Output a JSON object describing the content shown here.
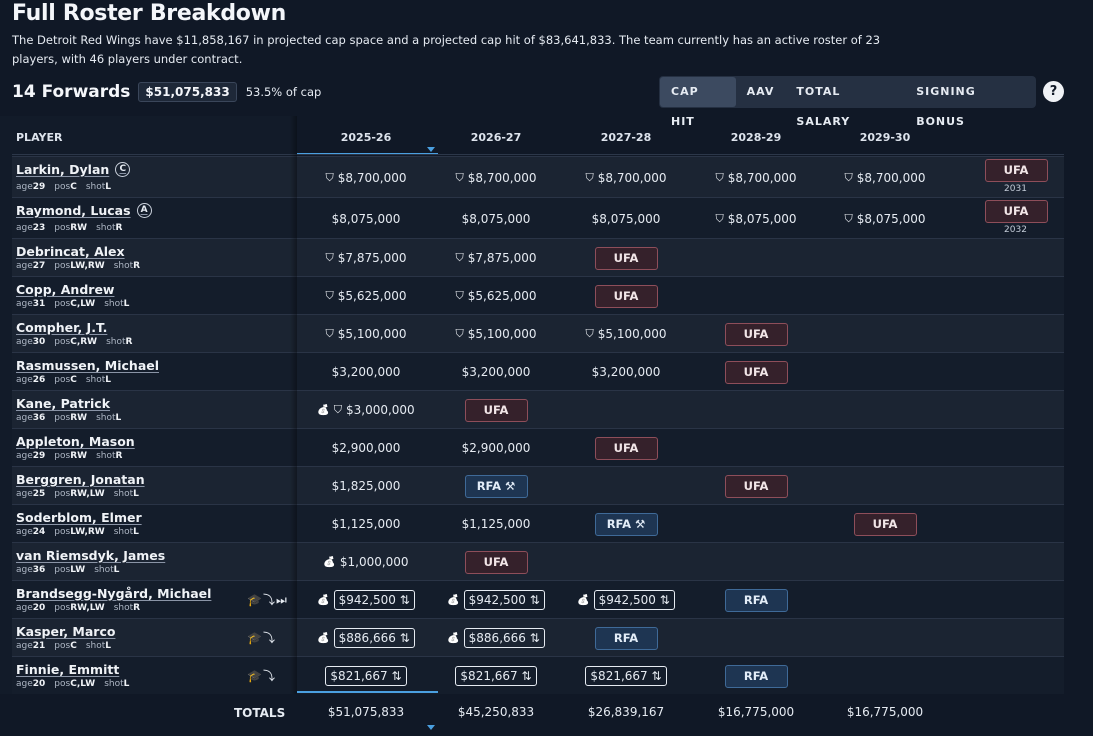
{
  "title": "Full Roster Breakdown",
  "description": "The Detroit Red Wings have $11,858,167 in projected cap space and a projected cap hit of $83,641,833. The team currently has an active roster of 23 players, with 46 players under contract.",
  "group": {
    "title": "14 Forwards",
    "cap": "$51,075,833",
    "pct": "53.5% of cap"
  },
  "toggle": [
    "CAP HIT",
    "AAV",
    "TOTAL SALARY",
    "SIGNING BONUS"
  ],
  "toggle_active": "CAP HIT",
  "help": "?",
  "header": {
    "player": "PLAYER",
    "years": [
      "2025-26",
      "2026-27",
      "2027-28",
      "2028-29",
      "2029-30"
    ]
  },
  "labels": {
    "age": "age",
    "pos": "pos",
    "shot": "shot"
  },
  "players": [
    {
      "name": "Larkin, Dylan",
      "badge": "C",
      "age": "29",
      "pos": "C",
      "shot": "L",
      "icons": "",
      "cells": [
        {
          "v": "$8,700,000",
          "i": "shield"
        },
        {
          "v": "$8,700,000",
          "i": "shield"
        },
        {
          "v": "$8,700,000",
          "i": "shield"
        },
        {
          "v": "$8,700,000",
          "i": "shield"
        },
        {
          "v": "$8,700,000",
          "i": "shield"
        },
        {
          "s": "UFA",
          "sub": "2031"
        }
      ]
    },
    {
      "name": "Raymond, Lucas",
      "badge": "A",
      "age": "23",
      "pos": "RW",
      "shot": "R",
      "icons": "",
      "cells": [
        {
          "v": "$8,075,000"
        },
        {
          "v": "$8,075,000"
        },
        {
          "v": "$8,075,000"
        },
        {
          "v": "$8,075,000",
          "i": "shield"
        },
        {
          "v": "$8,075,000",
          "i": "shield"
        },
        {
          "s": "UFA",
          "sub": "2032"
        }
      ]
    },
    {
      "name": "Debrincat, Alex",
      "badge": "",
      "age": "27",
      "pos": "LW,RW",
      "shot": "R",
      "icons": "",
      "cells": [
        {
          "v": "$7,875,000",
          "i": "shield"
        },
        {
          "v": "$7,875,000",
          "i": "shield"
        },
        {
          "s": "UFA"
        }
      ]
    },
    {
      "name": "Copp, Andrew",
      "badge": "",
      "age": "31",
      "pos": "C,LW",
      "shot": "L",
      "icons": "",
      "cells": [
        {
          "v": "$5,625,000",
          "i": "shield"
        },
        {
          "v": "$5,625,000",
          "i": "shield"
        },
        {
          "s": "UFA"
        }
      ]
    },
    {
      "name": "Compher, J.T.",
      "badge": "",
      "age": "30",
      "pos": "C,RW",
      "shot": "R",
      "icons": "",
      "cells": [
        {
          "v": "$5,100,000",
          "i": "shield"
        },
        {
          "v": "$5,100,000",
          "i": "shield"
        },
        {
          "v": "$5,100,000",
          "i": "shield"
        },
        {
          "s": "UFA"
        }
      ]
    },
    {
      "name": "Rasmussen, Michael",
      "badge": "",
      "age": "26",
      "pos": "C",
      "shot": "L",
      "icons": "",
      "cells": [
        {
          "v": "$3,200,000"
        },
        {
          "v": "$3,200,000"
        },
        {
          "v": "$3,200,000"
        },
        {
          "s": "UFA"
        }
      ]
    },
    {
      "name": "Kane, Patrick",
      "badge": "",
      "age": "36",
      "pos": "RW",
      "shot": "L",
      "icons": "",
      "cells": [
        {
          "v": "$3,000,000",
          "i": "bag-shield"
        },
        {
          "s": "UFA"
        }
      ]
    },
    {
      "name": "Appleton, Mason",
      "badge": "",
      "age": "29",
      "pos": "RW",
      "shot": "R",
      "icons": "",
      "cells": [
        {
          "v": "$2,900,000"
        },
        {
          "v": "$2,900,000"
        },
        {
          "s": "UFA"
        }
      ]
    },
    {
      "name": "Berggren, Jonatan",
      "badge": "",
      "age": "25",
      "pos": "RW,LW",
      "shot": "L",
      "icons": "",
      "cells": [
        {
          "v": "$1,825,000"
        },
        {
          "s": "RFA",
          "arb": true
        },
        {},
        {
          "s": "UFA"
        }
      ]
    },
    {
      "name": "Soderblom, Elmer",
      "badge": "",
      "age": "24",
      "pos": "LW,RW",
      "shot": "L",
      "icons": "",
      "cells": [
        {
          "v": "$1,125,000"
        },
        {
          "v": "$1,125,000"
        },
        {
          "s": "RFA",
          "arb": true
        },
        {},
        {
          "s": "UFA"
        }
      ]
    },
    {
      "name": "van Riemsdyk, James",
      "badge": "",
      "age": "36",
      "pos": "LW",
      "shot": "L",
      "icons": "",
      "cells": [
        {
          "v": "$1,000,000",
          "i": "bag"
        },
        {
          "s": "UFA"
        }
      ]
    },
    {
      "name": "Brandsegg-Nygård, Michael",
      "badge": "",
      "age": "20",
      "pos": "RW,LW",
      "shot": "R",
      "icons": "🎓⤵⏭",
      "cells": [
        {
          "v": "$942,500",
          "i": "bag",
          "box": true
        },
        {
          "v": "$942,500",
          "i": "bag",
          "box": true
        },
        {
          "v": "$942,500",
          "i": "bag",
          "box": true
        },
        {
          "s": "RFA"
        }
      ]
    },
    {
      "name": "Kasper, Marco",
      "badge": "",
      "age": "21",
      "pos": "C",
      "shot": "L",
      "icons": "🎓⤵",
      "cells": [
        {
          "v": "$886,666",
          "i": "bag",
          "box": true
        },
        {
          "v": "$886,666",
          "i": "bag",
          "box": true
        },
        {
          "s": "RFA"
        }
      ]
    },
    {
      "name": "Finnie, Emmitt",
      "badge": "",
      "age": "20",
      "pos": "C,LW",
      "shot": "L",
      "icons": "🎓⤵",
      "cells": [
        {
          "v": "$821,667",
          "box": true
        },
        {
          "v": "$821,667",
          "box": true
        },
        {
          "v": "$821,667",
          "box": true
        },
        {
          "s": "RFA"
        }
      ]
    }
  ],
  "totals": {
    "label": "TOTALS",
    "values": [
      "$51,075,833",
      "$45,250,833",
      "$26,839,167",
      "$16,775,000",
      "$16,775,000"
    ]
  }
}
